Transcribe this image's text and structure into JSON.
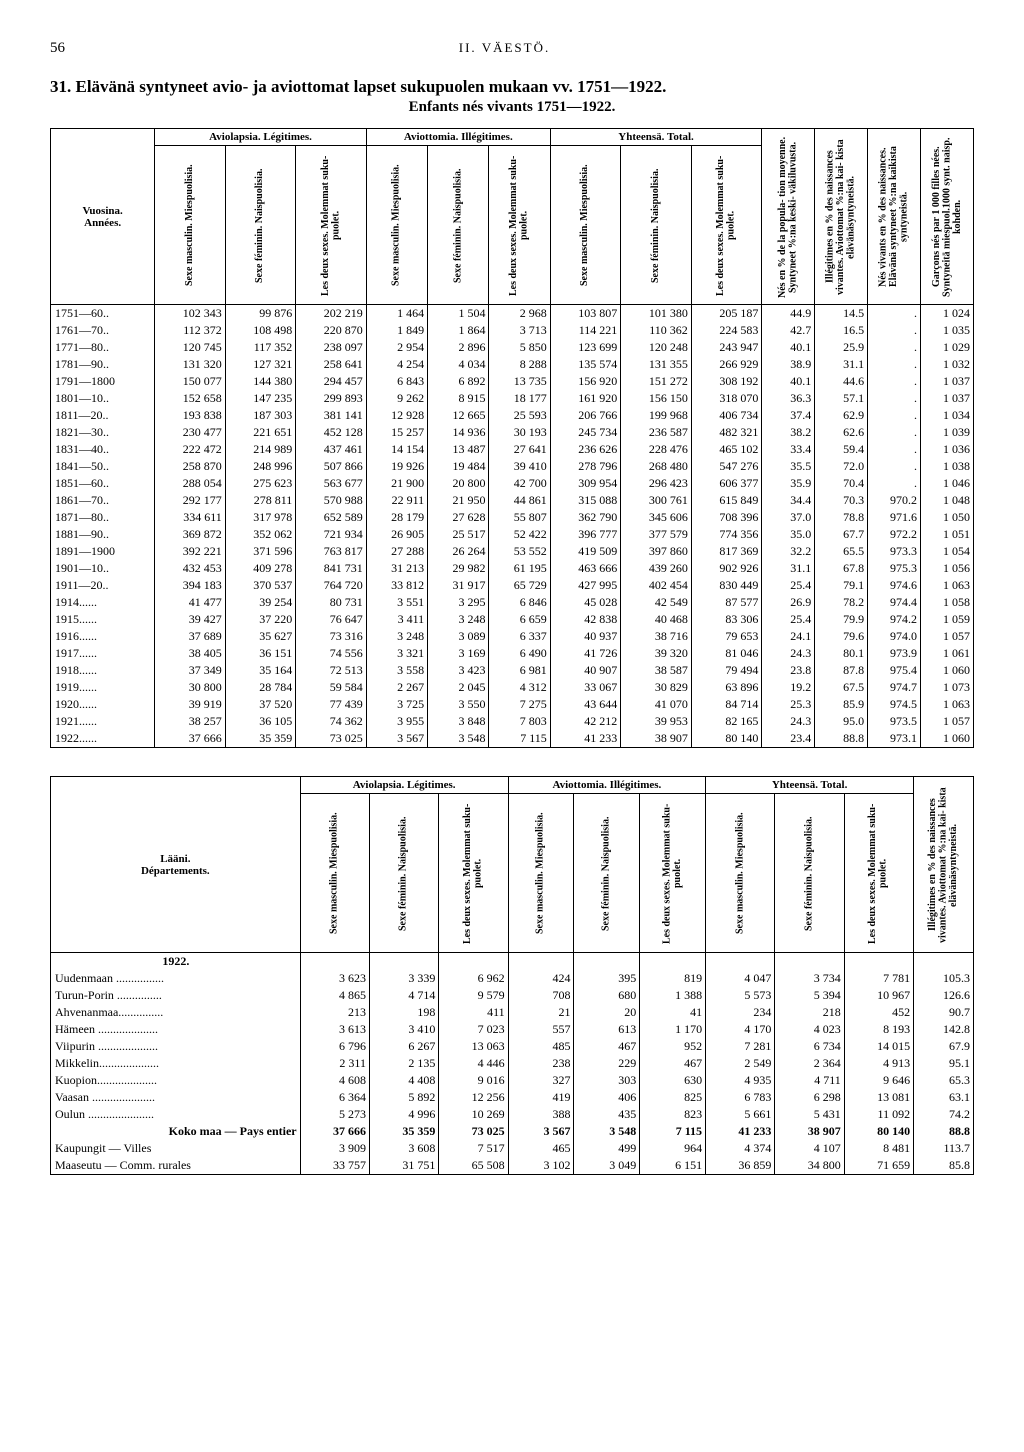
{
  "page_number": "56",
  "running_head": "II.   VÄESTÖ.",
  "section_number": "31.",
  "title_line": "Elävänä syntyneet avio- ja aviottomat lapset sukupuolen mukaan vv. 1751—1922.",
  "subtitle": "Enfants nés vivants 1751—1922.",
  "t1": {
    "groups": {
      "leg": "Aviolapsia.\nLégitimes.",
      "ill": "Aviottomia.\nIllégitimes.",
      "tot": "Yhteensä.\nTotal."
    },
    "years_label_1": "Vuosina.",
    "years_label_2": "Années.",
    "col_sm": "Sexe masculin.\nMiespuolisia.",
    "col_sf": "Sexe féminin.\nNaispuolisia.",
    "col_both": "Les deux sexes.\nMolemmat suku-\npuolet.",
    "col_pop": "Nés en % de la popula-\ntion moyenne.\nSyntyneet %:na keski-\nväkiluvusta.",
    "col_illpct": "Illégitimes en % des\nnaissances vivantes.\nAviottomat %:na kai-\nkista elävänäsyntyneistä.",
    "col_livpct": "Nés vivants en % des\nnaissances.\nElävänä syntyneet %:na\nkaikista syntyneistä.",
    "col_ratio": "Garçons nés par 1 000\nfilles nées.\nSyntyneitä miespuol.1000\nsynt. naisp. kohden.",
    "rows": [
      {
        "y": "1751—60..",
        "lm": "102 343",
        "lf": "99 876",
        "lb": "202 219",
        "im": "1 464",
        "if": "1 504",
        "ib": "2 968",
        "tm": "103 807",
        "tf": "101 380",
        "tb": "205 187",
        "p": "44.9",
        "ip": "14.5",
        "lv": ".",
        "r": "1 024"
      },
      {
        "y": "1761—70..",
        "lm": "112 372",
        "lf": "108 498",
        "lb": "220 870",
        "im": "1 849",
        "if": "1 864",
        "ib": "3 713",
        "tm": "114 221",
        "tf": "110 362",
        "tb": "224 583",
        "p": "42.7",
        "ip": "16.5",
        "lv": ".",
        "r": "1 035"
      },
      {
        "y": "1771—80..",
        "lm": "120 745",
        "lf": "117 352",
        "lb": "238 097",
        "im": "2 954",
        "if": "2 896",
        "ib": "5 850",
        "tm": "123 699",
        "tf": "120 248",
        "tb": "243 947",
        "p": "40.1",
        "ip": "25.9",
        "lv": ".",
        "r": "1 029"
      },
      {
        "y": "1781—90..",
        "lm": "131 320",
        "lf": "127 321",
        "lb": "258 641",
        "im": "4 254",
        "if": "4 034",
        "ib": "8 288",
        "tm": "135 574",
        "tf": "131 355",
        "tb": "266 929",
        "p": "38.9",
        "ip": "31.1",
        "lv": ".",
        "r": "1 032"
      },
      {
        "y": "1791—1800",
        "lm": "150 077",
        "lf": "144 380",
        "lb": "294 457",
        "im": "6 843",
        "if": "6 892",
        "ib": "13 735",
        "tm": "156 920",
        "tf": "151 272",
        "tb": "308 192",
        "p": "40.1",
        "ip": "44.6",
        "lv": ".",
        "r": "1 037"
      },
      {
        "y": "1801—10..",
        "lm": "152 658",
        "lf": "147 235",
        "lb": "299 893",
        "im": "9 262",
        "if": "8 915",
        "ib": "18 177",
        "tm": "161 920",
        "tf": "156 150",
        "tb": "318 070",
        "p": "36.3",
        "ip": "57.1",
        "lv": ".",
        "r": "1 037"
      },
      {
        "y": "1811—20..",
        "lm": "193 838",
        "lf": "187 303",
        "lb": "381 141",
        "im": "12 928",
        "if": "12 665",
        "ib": "25 593",
        "tm": "206 766",
        "tf": "199 968",
        "tb": "406 734",
        "p": "37.4",
        "ip": "62.9",
        "lv": ".",
        "r": "1 034"
      },
      {
        "y": "1821—30..",
        "lm": "230 477",
        "lf": "221 651",
        "lb": "452 128",
        "im": "15 257",
        "if": "14 936",
        "ib": "30 193",
        "tm": "245 734",
        "tf": "236 587",
        "tb": "482 321",
        "p": "38.2",
        "ip": "62.6",
        "lv": ".",
        "r": "1 039"
      },
      {
        "y": "1831—40..",
        "lm": "222 472",
        "lf": "214 989",
        "lb": "437 461",
        "im": "14 154",
        "if": "13 487",
        "ib": "27 641",
        "tm": "236 626",
        "tf": "228 476",
        "tb": "465 102",
        "p": "33.4",
        "ip": "59.4",
        "lv": ".",
        "r": "1 036"
      },
      {
        "y": "1841—50..",
        "lm": "258 870",
        "lf": "248 996",
        "lb": "507 866",
        "im": "19 926",
        "if": "19 484",
        "ib": "39 410",
        "tm": "278 796",
        "tf": "268 480",
        "tb": "547 276",
        "p": "35.5",
        "ip": "72.0",
        "lv": ".",
        "r": "1 038"
      },
      {
        "y": "1851—60..",
        "lm": "288 054",
        "lf": "275 623",
        "lb": "563 677",
        "im": "21 900",
        "if": "20 800",
        "ib": "42 700",
        "tm": "309 954",
        "tf": "296 423",
        "tb": "606 377",
        "p": "35.9",
        "ip": "70.4",
        "lv": ".",
        "r": "1 046"
      },
      {
        "y": "1861—70..",
        "lm": "292 177",
        "lf": "278 811",
        "lb": "570 988",
        "im": "22 911",
        "if": "21 950",
        "ib": "44 861",
        "tm": "315 088",
        "tf": "300 761",
        "tb": "615 849",
        "p": "34.4",
        "ip": "70.3",
        "lv": "970.2",
        "r": "1 048"
      },
      {
        "y": "1871—80..",
        "lm": "334 611",
        "lf": "317 978",
        "lb": "652 589",
        "im": "28 179",
        "if": "27 628",
        "ib": "55 807",
        "tm": "362 790",
        "tf": "345 606",
        "tb": "708 396",
        "p": "37.0",
        "ip": "78.8",
        "lv": "971.6",
        "r": "1 050"
      },
      {
        "y": "1881—90..",
        "lm": "369 872",
        "lf": "352 062",
        "lb": "721 934",
        "im": "26 905",
        "if": "25 517",
        "ib": "52 422",
        "tm": "396 777",
        "tf": "377 579",
        "tb": "774 356",
        "p": "35.0",
        "ip": "67.7",
        "lv": "972.2",
        "r": "1 051"
      },
      {
        "y": "1891—1900",
        "lm": "392 221",
        "lf": "371 596",
        "lb": "763 817",
        "im": "27 288",
        "if": "26 264",
        "ib": "53 552",
        "tm": "419 509",
        "tf": "397 860",
        "tb": "817 369",
        "p": "32.2",
        "ip": "65.5",
        "lv": "973.3",
        "r": "1 054"
      },
      {
        "y": "1901—10..",
        "lm": "432 453",
        "lf": "409 278",
        "lb": "841 731",
        "im": "31 213",
        "if": "29 982",
        "ib": "61 195",
        "tm": "463 666",
        "tf": "439 260",
        "tb": "902 926",
        "p": "31.1",
        "ip": "67.8",
        "lv": "975.3",
        "r": "1 056"
      },
      {
        "y": "1911—20..",
        "lm": "394 183",
        "lf": "370 537",
        "lb": "764 720",
        "im": "33 812",
        "if": "31 917",
        "ib": "65 729",
        "tm": "427 995",
        "tf": "402 454",
        "tb": "830 449",
        "p": "25.4",
        "ip": "79.1",
        "lv": "974.6",
        "r": "1 063"
      },
      {
        "y": "1914......",
        "lm": "41 477",
        "lf": "39 254",
        "lb": "80 731",
        "im": "3 551",
        "if": "3 295",
        "ib": "6 846",
        "tm": "45 028",
        "tf": "42 549",
        "tb": "87 577",
        "p": "26.9",
        "ip": "78.2",
        "lv": "974.4",
        "r": "1 058"
      },
      {
        "y": "1915......",
        "lm": "39 427",
        "lf": "37 220",
        "lb": "76 647",
        "im": "3 411",
        "if": "3 248",
        "ib": "6 659",
        "tm": "42 838",
        "tf": "40 468",
        "tb": "83 306",
        "p": "25.4",
        "ip": "79.9",
        "lv": "974.2",
        "r": "1 059"
      },
      {
        "y": "1916......",
        "lm": "37 689",
        "lf": "35 627",
        "lb": "73 316",
        "im": "3 248",
        "if": "3 089",
        "ib": "6 337",
        "tm": "40 937",
        "tf": "38 716",
        "tb": "79 653",
        "p": "24.1",
        "ip": "79.6",
        "lv": "974.0",
        "r": "1 057"
      },
      {
        "y": "1917......",
        "lm": "38 405",
        "lf": "36 151",
        "lb": "74 556",
        "im": "3 321",
        "if": "3 169",
        "ib": "6 490",
        "tm": "41 726",
        "tf": "39 320",
        "tb": "81 046",
        "p": "24.3",
        "ip": "80.1",
        "lv": "973.9",
        "r": "1 061"
      },
      {
        "y": "1918......",
        "lm": "37 349",
        "lf": "35 164",
        "lb": "72 513",
        "im": "3 558",
        "if": "3 423",
        "ib": "6 981",
        "tm": "40 907",
        "tf": "38 587",
        "tb": "79 494",
        "p": "23.8",
        "ip": "87.8",
        "lv": "975.4",
        "r": "1 060"
      },
      {
        "y": "1919......",
        "lm": "30 800",
        "lf": "28 784",
        "lb": "59 584",
        "im": "2 267",
        "if": "2 045",
        "ib": "4 312",
        "tm": "33 067",
        "tf": "30 829",
        "tb": "63 896",
        "p": "19.2",
        "ip": "67.5",
        "lv": "974.7",
        "r": "1 073"
      },
      {
        "y": "1920......",
        "lm": "39 919",
        "lf": "37 520",
        "lb": "77 439",
        "im": "3 725",
        "if": "3 550",
        "ib": "7 275",
        "tm": "43 644",
        "tf": "41 070",
        "tb": "84 714",
        "p": "25.3",
        "ip": "85.9",
        "lv": "974.5",
        "r": "1 063"
      },
      {
        "y": "1921......",
        "lm": "38 257",
        "lf": "36 105",
        "lb": "74 362",
        "im": "3 955",
        "if": "3 848",
        "ib": "7 803",
        "tm": "42 212",
        "tf": "39 953",
        "tb": "82 165",
        "p": "24.3",
        "ip": "95.0",
        "lv": "973.5",
        "r": "1 057"
      },
      {
        "y": "1922......",
        "lm": "37 666",
        "lf": "35 359",
        "lb": "73 025",
        "im": "3 567",
        "if": "3 548",
        "ib": "7 115",
        "tm": "41 233",
        "tf": "38 907",
        "tb": "80 140",
        "p": "23.4",
        "ip": "88.8",
        "lv": "973.1",
        "r": "1 060"
      }
    ]
  },
  "t2": {
    "dept_label_1": "Lääni.",
    "dept_label_2": "Départements.",
    "year_row": "1922.",
    "col_illpct": "Illégitimes en % des\nnaissances vivantes.\nAviottomat %:na kai-\nkista elävänäsyntyneistä.",
    "rows": [
      {
        "d": "Uudenmaan ................",
        "lm": "3 623",
        "lf": "3 339",
        "lb": "6 962",
        "im": "424",
        "if": "395",
        "ib": "819",
        "tm": "4 047",
        "tf": "3 734",
        "tb": "7 781",
        "p": "105.3"
      },
      {
        "d": "Turun-Porin ...............",
        "lm": "4 865",
        "lf": "4 714",
        "lb": "9 579",
        "im": "708",
        "if": "680",
        "ib": "1 388",
        "tm": "5 573",
        "tf": "5 394",
        "tb": "10 967",
        "p": "126.6"
      },
      {
        "d": "Ahvenanmaa...............",
        "lm": "213",
        "lf": "198",
        "lb": "411",
        "im": "21",
        "if": "20",
        "ib": "41",
        "tm": "234",
        "tf": "218",
        "tb": "452",
        "p": "90.7"
      },
      {
        "d": "Hämeen ....................",
        "lm": "3 613",
        "lf": "3 410",
        "lb": "7 023",
        "im": "557",
        "if": "613",
        "ib": "1 170",
        "tm": "4 170",
        "tf": "4 023",
        "tb": "8 193",
        "p": "142.8"
      },
      {
        "d": "Viipurin ....................",
        "lm": "6 796",
        "lf": "6 267",
        "lb": "13 063",
        "im": "485",
        "if": "467",
        "ib": "952",
        "tm": "7 281",
        "tf": "6 734",
        "tb": "14 015",
        "p": "67.9"
      },
      {
        "d": "Mikkelin....................",
        "lm": "2 311",
        "lf": "2 135",
        "lb": "4 446",
        "im": "238",
        "if": "229",
        "ib": "467",
        "tm": "2 549",
        "tf": "2 364",
        "tb": "4 913",
        "p": "95.1"
      },
      {
        "d": "Kuopion....................",
        "lm": "4 608",
        "lf": "4 408",
        "lb": "9 016",
        "im": "327",
        "if": "303",
        "ib": "630",
        "tm": "4 935",
        "tf": "4 711",
        "tb": "9 646",
        "p": "65.3"
      },
      {
        "d": "Vaasan .....................",
        "lm": "6 364",
        "lf": "5 892",
        "lb": "12 256",
        "im": "419",
        "if": "406",
        "ib": "825",
        "tm": "6 783",
        "tf": "6 298",
        "tb": "13 081",
        "p": "63.1"
      },
      {
        "d": "Oulun ......................",
        "lm": "5 273",
        "lf": "4 996",
        "lb": "10 269",
        "im": "388",
        "if": "435",
        "ib": "823",
        "tm": "5 661",
        "tf": "5 431",
        "tb": "11 092",
        "p": "74.2"
      }
    ],
    "totals": [
      {
        "d": "Koko maa — Pays entier",
        "lm": "37 666",
        "lf": "35 359",
        "lb": "73 025",
        "im": "3 567",
        "if": "3 548",
        "ib": "7 115",
        "tm": "41 233",
        "tf": "38 907",
        "tb": "80 140",
        "p": "88.8"
      },
      {
        "d": "Kaupungit — Villes",
        "lm": "3 909",
        "lf": "3 608",
        "lb": "7 517",
        "im": "465",
        "if": "499",
        "ib": "964",
        "tm": "4 374",
        "tf": "4 107",
        "tb": "8 481",
        "p": "113.7"
      },
      {
        "d": "Maaseutu — Comm. rurales",
        "lm": "33 757",
        "lf": "31 751",
        "lb": "65 508",
        "im": "3 102",
        "if": "3 049",
        "ib": "6 151",
        "tm": "36 859",
        "tf": "34 800",
        "tb": "71 659",
        "p": "85.8"
      }
    ]
  }
}
